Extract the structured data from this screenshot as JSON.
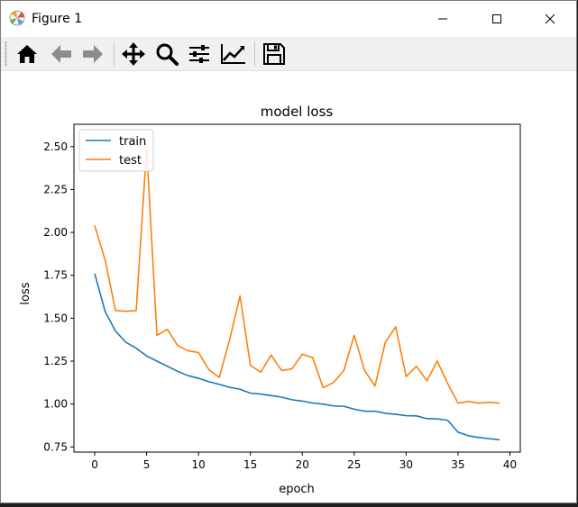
{
  "window": {
    "title": "Figure 1"
  },
  "toolbar": {
    "tools": [
      {
        "name": "home-icon"
      },
      {
        "name": "back-arrow-icon"
      },
      {
        "name": "forward-arrow-icon"
      },
      {
        "name": "pan-move-icon"
      },
      {
        "name": "zoom-magnifier-icon"
      },
      {
        "name": "subplots-config-icon"
      },
      {
        "name": "edit-axis-icon"
      },
      {
        "name": "save-floppy-icon"
      }
    ]
  },
  "chart_data": {
    "type": "line",
    "title": "model loss",
    "xlabel": "epoch",
    "ylabel": "loss",
    "xlim": [
      -2,
      41
    ],
    "ylim": [
      0.72,
      2.63
    ],
    "xticks": [
      0,
      5,
      10,
      15,
      20,
      25,
      30,
      35,
      40
    ],
    "yticks": [
      0.75,
      1.0,
      1.25,
      1.5,
      1.75,
      2.0,
      2.25,
      2.5
    ],
    "ytick_labels": [
      "0.75",
      "1.00",
      "1.25",
      "1.50",
      "1.75",
      "2.00",
      "2.25",
      "2.50"
    ],
    "grid": false,
    "legend_position": "upper-left",
    "x": [
      0,
      1,
      2,
      3,
      4,
      5,
      6,
      7,
      8,
      9,
      10,
      11,
      12,
      13,
      14,
      15,
      16,
      17,
      18,
      19,
      20,
      21,
      22,
      23,
      24,
      25,
      26,
      27,
      28,
      29,
      30,
      31,
      32,
      33,
      34,
      35,
      36,
      37,
      38,
      39
    ],
    "series": [
      {
        "name": "train",
        "color": "#1f77b4",
        "values": [
          1.76,
          1.54,
          1.425,
          1.36,
          1.325,
          1.28,
          1.25,
          1.22,
          1.19,
          1.165,
          1.15,
          1.13,
          1.115,
          1.097,
          1.086,
          1.063,
          1.058,
          1.049,
          1.04,
          1.025,
          1.017,
          1.006,
          0.999,
          0.989,
          0.987,
          0.97,
          0.958,
          0.958,
          0.946,
          0.94,
          0.932,
          0.931,
          0.915,
          0.913,
          0.905,
          0.836,
          0.815,
          0.805,
          0.798,
          0.792
        ]
      },
      {
        "name": "test",
        "color": "#ff7f0e",
        "values": [
          2.04,
          1.84,
          1.545,
          1.54,
          1.545,
          2.49,
          1.4,
          1.435,
          1.34,
          1.31,
          1.3,
          1.2,
          1.155,
          1.375,
          1.63,
          1.225,
          1.185,
          1.285,
          1.195,
          1.205,
          1.29,
          1.27,
          1.095,
          1.125,
          1.195,
          1.4,
          1.195,
          1.105,
          1.36,
          1.45,
          1.16,
          1.22,
          1.135,
          1.25,
          1.12,
          1.005,
          1.015,
          1.005,
          1.01,
          1.005
        ]
      }
    ]
  }
}
